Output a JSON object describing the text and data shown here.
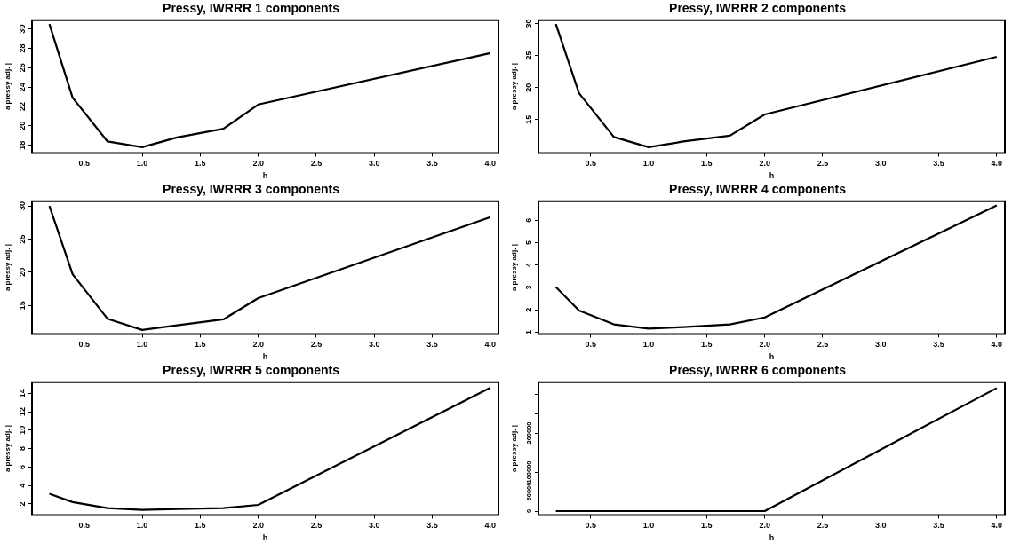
{
  "chart_data": [
    {
      "type": "line",
      "title": "Pressy, IWRRR 1 components",
      "xlabel": "h",
      "ylabel": "a pressy adj. |",
      "color": "#000000",
      "x": [
        0.2,
        0.4,
        0.7,
        1.0,
        1.3,
        1.7,
        2.0,
        4.0
      ],
      "values": [
        30.5,
        22.9,
        18.4,
        17.8,
        18.8,
        19.7,
        22.2,
        27.5
      ],
      "xlim": [
        0.05,
        4.07
      ],
      "xticks": [
        0.5,
        {
          "value": 1,
          "label": "1.0"
        },
        1.5,
        {
          "value": 2,
          "label": "2.0"
        },
        2.5,
        {
          "value": 3,
          "label": "3.0"
        },
        3.5,
        {
          "value": 4,
          "label": "4.0"
        }
      ],
      "ylim": [
        17.2,
        30.9
      ],
      "yticks": [
        18,
        20,
        22,
        24,
        26,
        28,
        30
      ]
    },
    {
      "type": "line",
      "title": "Pressy, IWRRR 2 components",
      "xlabel": "h",
      "ylabel": "a pressy adj. |",
      "color": "#000000",
      "x": [
        0.2,
        0.4,
        0.7,
        1.0,
        1.3,
        1.7,
        2.0,
        4.0
      ],
      "values": [
        29.9,
        19.1,
        12.3,
        10.7,
        11.6,
        12.5,
        15.8,
        24.8
      ],
      "xlim": [
        0.05,
        4.07
      ],
      "xticks": [
        0.5,
        {
          "value": 1,
          "label": "1.0"
        },
        1.5,
        {
          "value": 2,
          "label": "2.0"
        },
        2.5,
        {
          "value": 3,
          "label": "3.0"
        },
        3.5,
        {
          "value": 4,
          "label": "4.0"
        }
      ],
      "ylim": [
        9.8,
        30.5
      ],
      "yticks": [
        15,
        20,
        25,
        30
      ]
    },
    {
      "type": "line",
      "title": "Pressy, IWRRR 3 components",
      "xlabel": "h",
      "ylabel": "a pressy adj. |",
      "color": "#000000",
      "x": [
        0.2,
        0.4,
        0.7,
        1.0,
        1.3,
        1.7,
        2.0,
        4.0
      ],
      "values": [
        30,
        19.7,
        13,
        11.3,
        12,
        12.9,
        16.1,
        28.3
      ],
      "xlim": [
        0.05,
        4.07
      ],
      "xticks": [
        0.5,
        {
          "value": 1,
          "label": "1.0"
        },
        1.5,
        {
          "value": 2,
          "label": "2.0"
        },
        2.5,
        {
          "value": 3,
          "label": "3.0"
        },
        3.5,
        {
          "value": 4,
          "label": "4.0"
        }
      ],
      "ylim": [
        10.7,
        30.7
      ],
      "yticks": [
        15,
        20,
        25,
        30
      ]
    },
    {
      "type": "line",
      "title": "Pressy, IWRRR 4 components",
      "xlabel": "h",
      "ylabel": "a pressy adj. |",
      "color": "#000000",
      "x": [
        0.2,
        0.4,
        0.7,
        1.0,
        1.3,
        1.7,
        2.0,
        4.0
      ],
      "values": [
        3.02,
        1.97,
        1.35,
        1.16,
        1.23,
        1.35,
        1.66,
        6.66
      ],
      "xlim": [
        0.05,
        4.07
      ],
      "xticks": [
        0.5,
        {
          "value": 1,
          "label": "1.0"
        },
        1.5,
        {
          "value": 2,
          "label": "2.0"
        },
        2.5,
        {
          "value": 3,
          "label": "3.0"
        },
        3.5,
        {
          "value": 4,
          "label": "4.0"
        }
      ],
      "ylim": [
        0.92,
        6.85
      ],
      "yticks": [
        1,
        2,
        3,
        4,
        5,
        6
      ]
    },
    {
      "type": "line",
      "title": "Pressy, IWRRR 5 components",
      "xlabel": "h",
      "ylabel": "a pressy adj. |",
      "color": "#000000",
      "x": [
        0.2,
        0.4,
        0.7,
        1.0,
        1.3,
        1.7,
        2.0,
        4.0
      ],
      "values": [
        3.1,
        2.2,
        1.55,
        1.35,
        1.45,
        1.55,
        1.9,
        14.6
      ],
      "xlim": [
        0.05,
        4.07
      ],
      "xticks": [
        0.5,
        {
          "value": 1,
          "label": "1.0"
        },
        1.5,
        {
          "value": 2,
          "label": "2.0"
        },
        2.5,
        {
          "value": 3,
          "label": "3.0"
        },
        3.5,
        {
          "value": 4,
          "label": "4.0"
        }
      ],
      "ylim": [
        0.8,
        15.2
      ],
      "yticks": [
        2,
        4,
        6,
        8,
        10,
        12,
        14
      ]
    },
    {
      "type": "line",
      "title": "Pressy, IWRRR 6 components",
      "xlabel": "h",
      "ylabel": "a pressy adj. |",
      "color": "#000000",
      "x": [
        0.2,
        0.4,
        0.7,
        1.0,
        1.3,
        1.7,
        2.0,
        4.0
      ],
      "values": [
        0,
        0,
        0,
        0,
        0,
        0,
        0,
        315000
      ],
      "xlim": [
        0.05,
        4.07
      ],
      "xticks": [
        0.5,
        {
          "value": 1,
          "label": "1.0"
        },
        1.5,
        {
          "value": 2,
          "label": "2.0"
        },
        2.5,
        {
          "value": 3,
          "label": "3.0"
        },
        3.5,
        {
          "value": 4,
          "label": "4.0"
        }
      ],
      "ylim": [
        -10000,
        330000
      ],
      "yticks": [
        0,
        50000,
        100000,
        {
          "value": 150000,
          "label": null
        },
        200000,
        {
          "value": 250000,
          "label": null
        },
        {
          "value": 300000,
          "label": null
        }
      ]
    }
  ]
}
